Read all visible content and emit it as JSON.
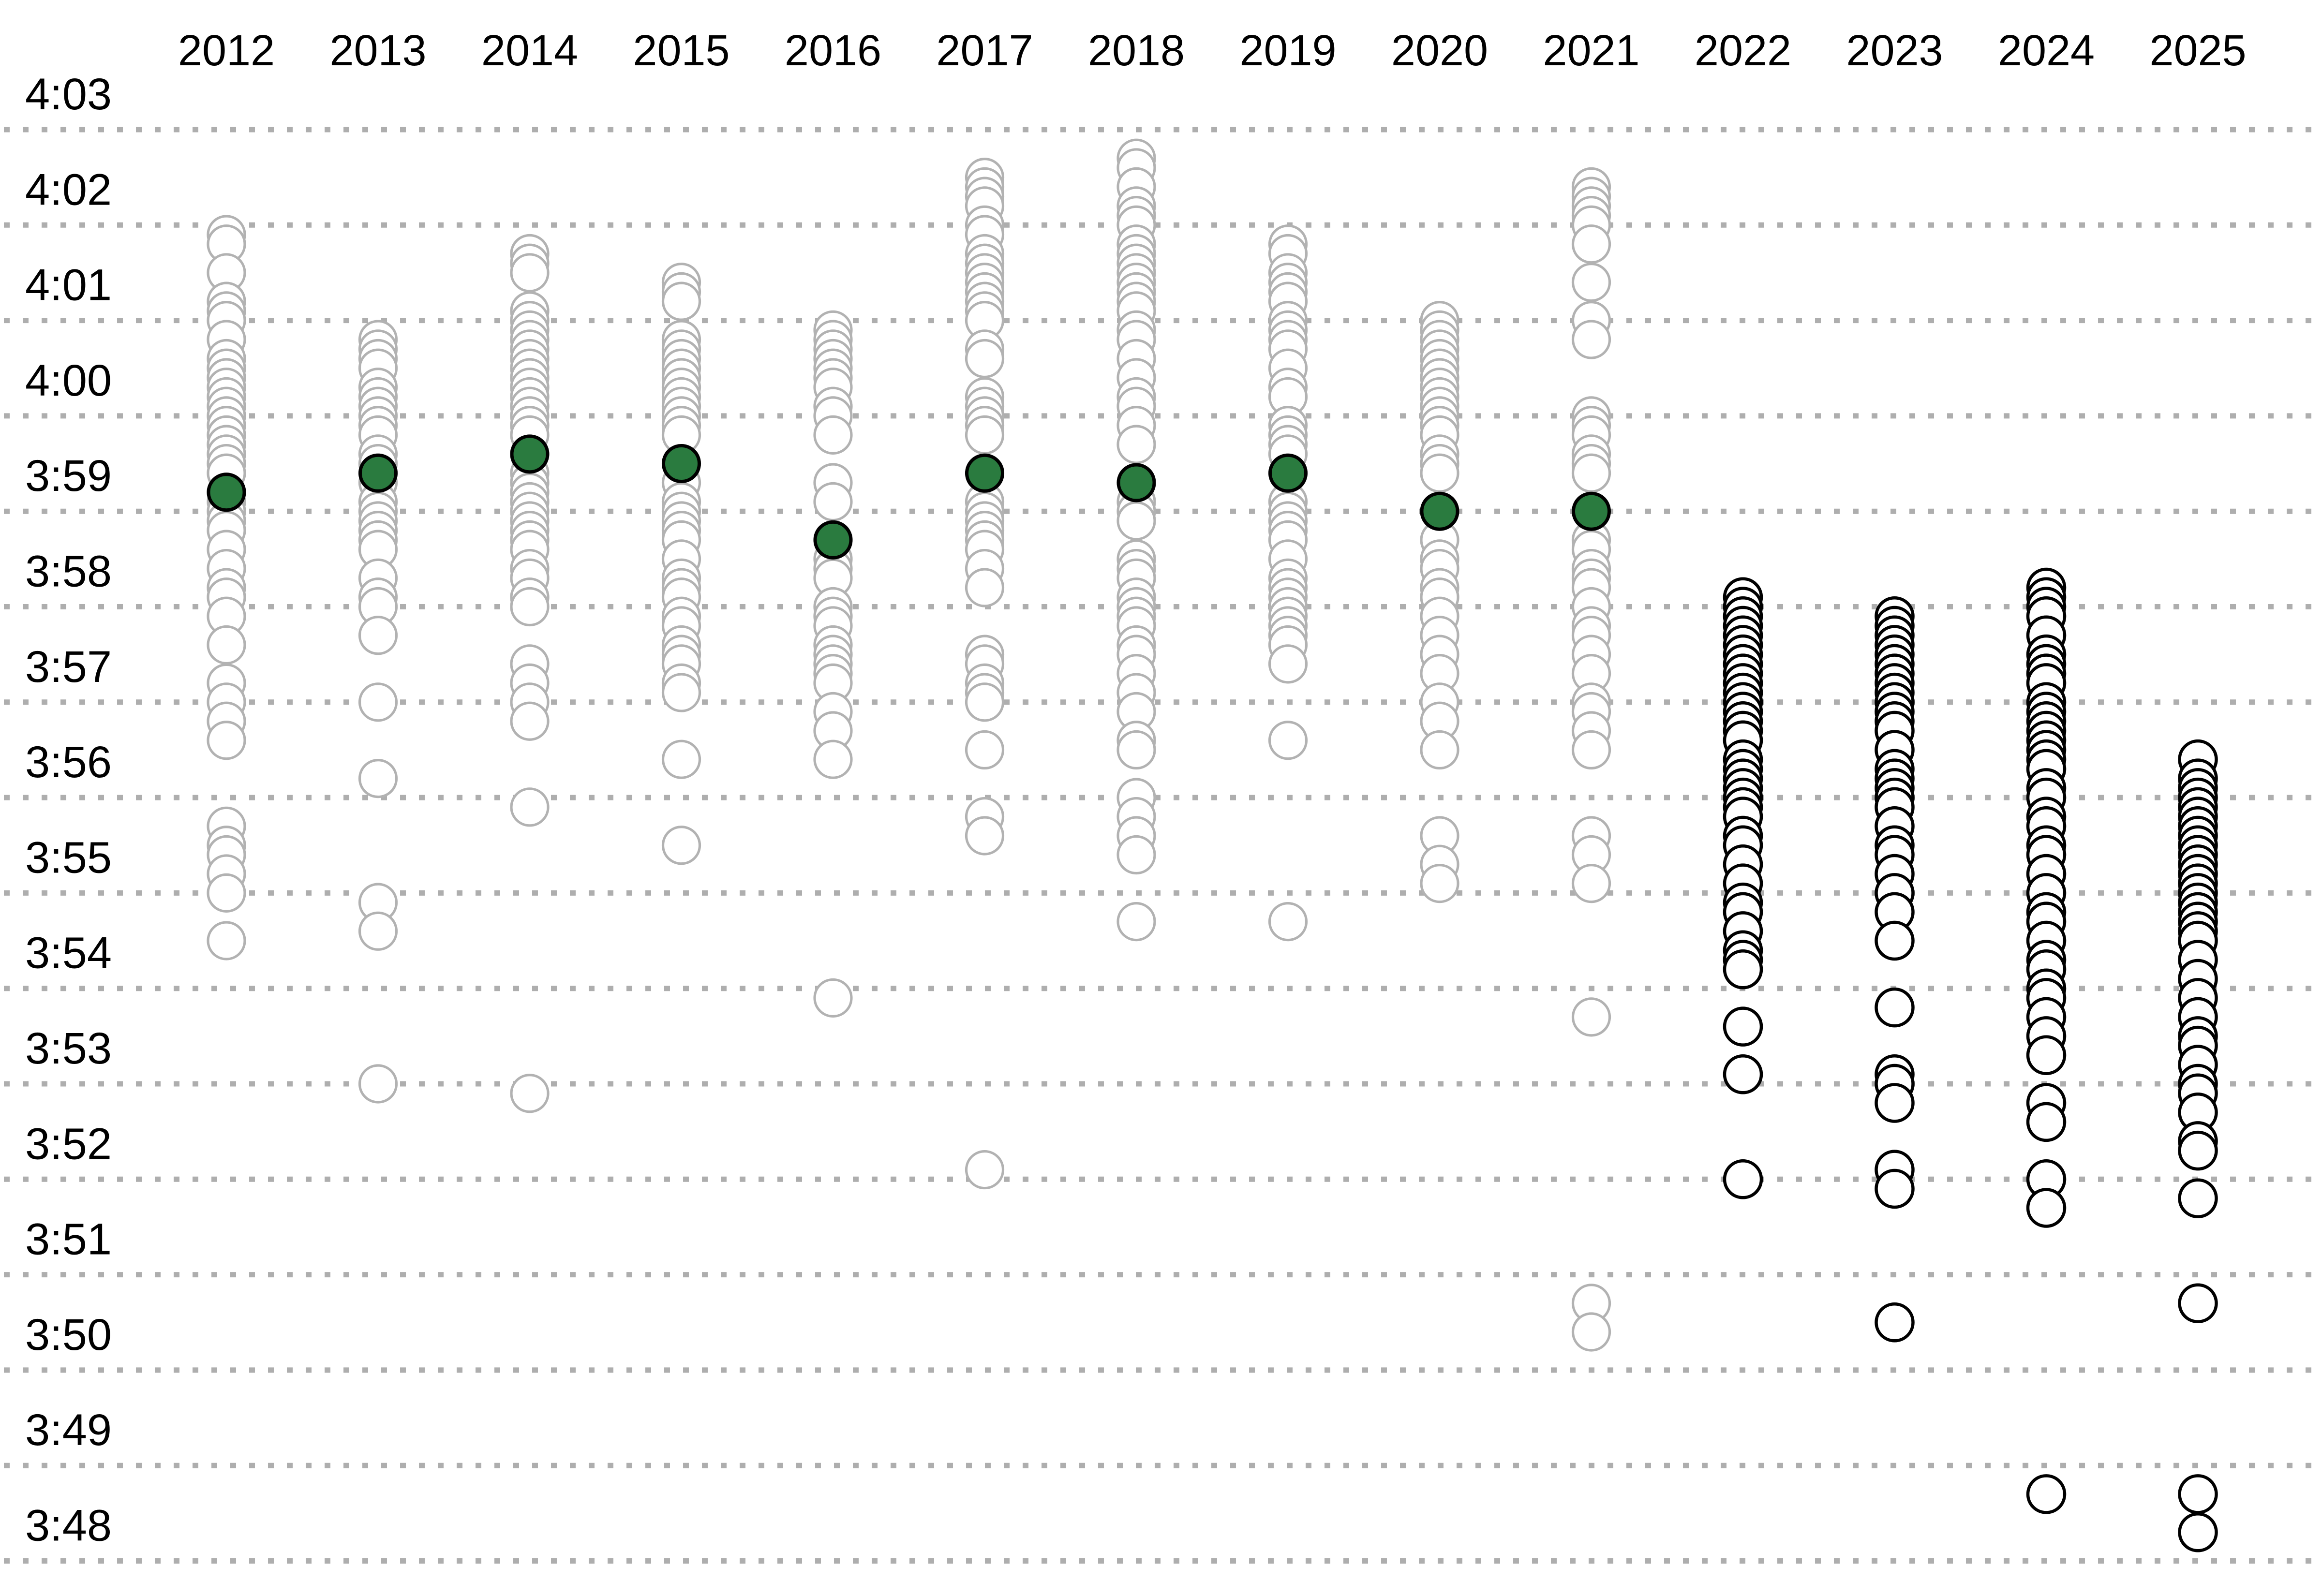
{
  "chart_data": {
    "type": "scatter",
    "title": "",
    "description": "Strip plot of mile times by year; open circles are individual times stacked in 0.1s steps, filled green dots are yearly medians (2012-2021 gray, 2022-2025 black).",
    "x_categories": [
      "2012",
      "2013",
      "2014",
      "2015",
      "2016",
      "2017",
      "2018",
      "2019",
      "2020",
      "2021",
      "2022",
      "2023",
      "2024",
      "2025"
    ],
    "y_axis": {
      "tick_labels": [
        "4:03",
        "4:02",
        "4:01",
        "4:00",
        "3:59",
        "3:58",
        "3:57",
        "3:56",
        "3:55",
        "3:54",
        "3:53",
        "3:52",
        "3:51",
        "3:50",
        "3:49",
        "3:48"
      ],
      "ylim_top": "4:03",
      "ylim_bottom": "3:48",
      "gridlines": "dotted",
      "tick_step_seconds": 1
    },
    "legend": {
      "shown": false
    },
    "colors": {
      "past_circle": "#b2b2b2",
      "recent_circle": "#000000",
      "median_fill": "#2a7b3f",
      "median_outline": "#000000",
      "gridline": "#aeaeae",
      "label": "#000000",
      "background": "#ffffff"
    },
    "series": [
      {
        "year": "2012",
        "group": "past",
        "median": "3:59.2",
        "times": [
          "4:01.9",
          "4:01.8",
          "4:01.5",
          "4:01.2",
          "4:01.1",
          "4:01.0",
          "4:00.8",
          "4:00.6",
          "4:00.5",
          "4:00.4",
          "4:00.3",
          "4:00.2",
          "4:00.1",
          "4:00.0",
          "3:59.9",
          "3:59.8",
          "3:59.7",
          "3:59.6",
          "3:59.5",
          "3:59.4",
          "3:59.2",
          "3:59.1",
          "3:59.0",
          "3:58.9",
          "3:58.8",
          "3:58.6",
          "3:58.4",
          "3:58.2",
          "3:58.1",
          "3:57.9",
          "3:57.6",
          "3:57.2",
          "3:57.0",
          "3:56.8",
          "3:56.6",
          "3:55.7",
          "3:55.5",
          "3:55.4",
          "3:55.2",
          "3:55.0",
          "3:54.5"
        ]
      },
      {
        "year": "2013",
        "group": "past",
        "median": "3:59.4",
        "times": [
          "4:00.8",
          "4:00.7",
          "4:00.6",
          "4:00.5",
          "4:00.3",
          "4:00.2",
          "4:00.1",
          "4:00.0",
          "3:59.9",
          "3:59.8",
          "3:59.6",
          "3:59.5",
          "3:59.4",
          "3:59.3",
          "3:59.1",
          "3:59.0",
          "3:58.9",
          "3:58.8",
          "3:58.7",
          "3:58.6",
          "3:58.3",
          "3:58.1",
          "3:58.0",
          "3:57.7",
          "3:57.0",
          "3:56.2",
          "3:54.9",
          "3:54.6",
          "3:53.0"
        ]
      },
      {
        "year": "2014",
        "group": "past",
        "median": "3:59.6",
        "times": [
          "4:01.7",
          "4:01.6",
          "4:01.5",
          "4:01.1",
          "4:01.0",
          "4:00.9",
          "4:00.8",
          "4:00.7",
          "4:00.6",
          "4:00.5",
          "4:00.4",
          "4:00.3",
          "4:00.2",
          "4:00.1",
          "4:00.0",
          "3:59.9",
          "3:59.8",
          "3:59.4",
          "3:59.3",
          "3:59.2",
          "3:59.1",
          "3:59.0",
          "3:58.9",
          "3:58.8",
          "3:58.7",
          "3:58.6",
          "3:58.4",
          "3:58.3",
          "3:58.1",
          "3:58.0",
          "3:57.4",
          "3:57.2",
          "3:57.0",
          "3:56.8",
          "3:55.9",
          "3:52.9"
        ]
      },
      {
        "year": "2015",
        "group": "past",
        "median": "3:59.5",
        "times": [
          "4:01.4",
          "4:01.3",
          "4:01.2",
          "4:00.8",
          "4:00.7",
          "4:00.6",
          "4:00.5",
          "4:00.4",
          "4:00.3",
          "4:00.2",
          "4:00.1",
          "4:00.0",
          "3:59.9",
          "3:59.8",
          "3:59.5",
          "3:59.3",
          "3:59.1",
          "3:59.0",
          "3:58.9",
          "3:58.8",
          "3:58.7",
          "3:58.5",
          "3:58.3",
          "3:58.2",
          "3:58.1",
          "3:57.9",
          "3:57.8",
          "3:57.6",
          "3:57.5",
          "3:57.4",
          "3:57.2",
          "3:57.1",
          "3:56.4",
          "3:55.5"
        ]
      },
      {
        "year": "2016",
        "group": "past",
        "median": "3:58.7",
        "times": [
          "4:00.9",
          "4:00.8",
          "4:00.7",
          "4:00.6",
          "4:00.5",
          "4:00.4",
          "4:00.3",
          "4:00.1",
          "4:00.0",
          "3:59.8",
          "3:59.3",
          "3:59.1",
          "3:58.7",
          "3:58.5",
          "3:58.4",
          "3:58.3",
          "3:58.0",
          "3:57.9",
          "3:57.8",
          "3:57.6",
          "3:57.5",
          "3:57.4",
          "3:57.3",
          "3:57.2",
          "3:56.9",
          "3:56.7",
          "3:56.4",
          "3:53.9"
        ]
      },
      {
        "year": "2017",
        "group": "past",
        "median": "3:59.4",
        "times": [
          "4:02.5",
          "4:02.4",
          "4:02.3",
          "4:02.2",
          "4:02.0",
          "4:01.9",
          "4:01.7",
          "4:01.6",
          "4:01.5",
          "4:01.4",
          "4:01.3",
          "4:01.2",
          "4:01.1",
          "4:01.0",
          "4:00.7",
          "4:00.6",
          "4:00.2",
          "4:00.1",
          "4:00.0",
          "3:59.9",
          "3:59.8",
          "3:59.4",
          "3:59.1",
          "3:59.0",
          "3:58.9",
          "3:58.8",
          "3:58.7",
          "3:58.6",
          "3:58.4",
          "3:58.2",
          "3:57.5",
          "3:57.4",
          "3:57.2",
          "3:57.1",
          "3:57.0",
          "3:56.5",
          "3:55.8",
          "3:55.6",
          "3:52.1"
        ]
      },
      {
        "year": "2018",
        "group": "past",
        "median": "3:59.3",
        "times": [
          "4:02.7",
          "4:02.6",
          "4:02.4",
          "4:02.2",
          "4:02.1",
          "4:02.0",
          "4:01.8",
          "4:01.7",
          "4:01.6",
          "4:01.5",
          "4:01.4",
          "4:01.3",
          "4:01.2",
          "4:01.1",
          "4:00.9",
          "4:00.8",
          "4:00.6",
          "4:00.4",
          "4:00.2",
          "4:00.1",
          "3:59.9",
          "3:59.7",
          "3:59.3",
          "3:59.1",
          "3:59.0",
          "3:58.9",
          "3:58.5",
          "3:58.4",
          "3:58.3",
          "3:58.1",
          "3:58.0",
          "3:57.9",
          "3:57.8",
          "3:57.6",
          "3:57.5",
          "3:57.3",
          "3:57.1",
          "3:56.9",
          "3:56.6",
          "3:56.5",
          "3:56.0",
          "3:55.8",
          "3:55.6",
          "3:55.4",
          "3:54.7"
        ]
      },
      {
        "year": "2019",
        "group": "past",
        "median": "3:59.4",
        "times": [
          "4:01.8",
          "4:01.7",
          "4:01.5",
          "4:01.4",
          "4:01.3",
          "4:01.2",
          "4:01.0",
          "4:00.9",
          "4:00.8",
          "4:00.7",
          "4:00.5",
          "4:00.3",
          "4:00.2",
          "3:59.9",
          "3:59.8",
          "3:59.7",
          "3:59.6",
          "3:59.4",
          "3:59.1",
          "3:59.0",
          "3:58.9",
          "3:58.8",
          "3:58.7",
          "3:58.5",
          "3:58.3",
          "3:58.2",
          "3:58.1",
          "3:58.0",
          "3:57.9",
          "3:57.8",
          "3:57.7",
          "3:57.6",
          "3:57.4",
          "3:56.6",
          "3:54.7"
        ]
      },
      {
        "year": "2020",
        "group": "past",
        "median": "3:59.0",
        "times": [
          "4:01.0",
          "4:00.9",
          "4:00.8",
          "4:00.7",
          "4:00.6",
          "4:00.5",
          "4:00.4",
          "4:00.3",
          "4:00.2",
          "4:00.1",
          "4:00.0",
          "3:59.9",
          "3:59.8",
          "3:59.6",
          "3:59.5",
          "3:59.4",
          "3:58.7",
          "3:58.5",
          "3:58.4",
          "3:58.2",
          "3:58.1",
          "3:57.9",
          "3:57.7",
          "3:57.5",
          "3:57.3",
          "3:57.0",
          "3:56.8",
          "3:56.5",
          "3:55.6",
          "3:55.3",
          "3:55.1"
        ]
      },
      {
        "year": "2021",
        "group": "past",
        "median": "3:59.0",
        "times": [
          "4:02.4",
          "4:02.3",
          "4:02.2",
          "4:02.1",
          "4:02.0",
          "4:01.8",
          "4:01.4",
          "4:01.0",
          "4:00.8",
          "4:00.0",
          "3:59.9",
          "3:59.8",
          "3:59.6",
          "3:59.5",
          "3:59.4",
          "3:58.7",
          "3:58.6",
          "3:58.4",
          "3:58.3",
          "3:58.2",
          "3:58.0",
          "3:57.8",
          "3:57.7",
          "3:57.5",
          "3:57.3",
          "3:57.0",
          "3:56.9",
          "3:56.7",
          "3:56.5",
          "3:55.6",
          "3:55.4",
          "3:55.1",
          "3:53.7",
          "3:50.7",
          "3:50.4"
        ]
      },
      {
        "year": "2022",
        "group": "recent",
        "median": null,
        "times": [
          "3:58.1",
          "3:58.0",
          "3:57.9",
          "3:57.8",
          "3:57.7",
          "3:57.6",
          "3:57.5",
          "3:57.4",
          "3:57.3",
          "3:57.2",
          "3:57.1",
          "3:57.0",
          "3:56.9",
          "3:56.8",
          "3:56.7",
          "3:56.6",
          "3:56.4",
          "3:56.3",
          "3:56.2",
          "3:56.1",
          "3:56.0",
          "3:55.9",
          "3:55.8",
          "3:55.6",
          "3:55.5",
          "3:55.3",
          "3:55.1",
          "3:54.9",
          "3:54.8",
          "3:54.6",
          "3:54.4",
          "3:54.3",
          "3:54.2",
          "3:53.6",
          "3:53.1",
          "3:52.0"
        ]
      },
      {
        "year": "2023",
        "group": "recent",
        "median": null,
        "times": [
          "3:57.9",
          "3:57.8",
          "3:57.7",
          "3:57.6",
          "3:57.5",
          "3:57.4",
          "3:57.3",
          "3:57.2",
          "3:57.1",
          "3:57.0",
          "3:56.9",
          "3:56.8",
          "3:56.7",
          "3:56.5",
          "3:56.3",
          "3:56.2",
          "3:56.1",
          "3:56.0",
          "3:55.9",
          "3:55.7",
          "3:55.5",
          "3:55.4",
          "3:55.2",
          "3:55.0",
          "3:54.8",
          "3:54.5",
          "3:53.8",
          "3:53.1",
          "3:53.0",
          "3:52.8",
          "3:52.1",
          "3:51.9",
          "3:50.5"
        ]
      },
      {
        "year": "2024",
        "group": "recent",
        "median": null,
        "times": [
          "3:58.2",
          "3:58.1",
          "3:58.0",
          "3:57.9",
          "3:57.7",
          "3:57.5",
          "3:57.4",
          "3:57.3",
          "3:57.2",
          "3:57.0",
          "3:56.9",
          "3:56.8",
          "3:56.7",
          "3:56.6",
          "3:56.5",
          "3:56.4",
          "3:56.3",
          "3:56.1",
          "3:56.0",
          "3:55.8",
          "3:55.7",
          "3:55.5",
          "3:55.4",
          "3:55.2",
          "3:55.0",
          "3:54.8",
          "3:54.7",
          "3:54.5",
          "3:54.3",
          "3:54.2",
          "3:54.0",
          "3:53.9",
          "3:53.7",
          "3:53.5",
          "3:53.3",
          "3:52.8",
          "3:52.6",
          "3:52.0",
          "3:51.7",
          "3:48.7"
        ]
      },
      {
        "year": "2025",
        "group": "recent",
        "median": null,
        "times": [
          "3:56.4",
          "3:56.2",
          "3:56.1",
          "3:56.0",
          "3:55.9",
          "3:55.8",
          "3:55.7",
          "3:55.6",
          "3:55.5",
          "3:55.4",
          "3:55.3",
          "3:55.2",
          "3:55.1",
          "3:55.0",
          "3:54.9",
          "3:54.8",
          "3:54.7",
          "3:54.6",
          "3:54.5",
          "3:54.3",
          "3:54.1",
          "3:53.9",
          "3:53.7",
          "3:53.5",
          "3:53.4",
          "3:53.2",
          "3:53.0",
          "3:52.9",
          "3:52.7",
          "3:52.4",
          "3:52.3",
          "3:51.8",
          "3:50.7",
          "3:48.7",
          "3:48.3"
        ]
      }
    ]
  }
}
